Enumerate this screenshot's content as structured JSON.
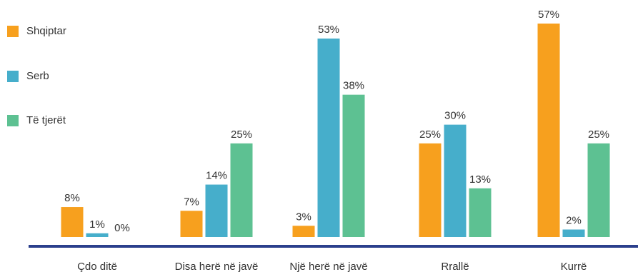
{
  "chart_data": {
    "type": "bar",
    "categories": [
      "Çdo ditë",
      "Disa herë në javë",
      "Një herë në javë",
      "Rrallë",
      "Kurrë"
    ],
    "series": [
      {
        "name": "Shqiptar",
        "color": "#F7A01E",
        "values": [
          8,
          7,
          3,
          25,
          57
        ],
        "labels": [
          "8%",
          "7%",
          "3%",
          "25%",
          "57%"
        ]
      },
      {
        "name": "Serb",
        "color": "#46AECB",
        "values": [
          1,
          14,
          53,
          30,
          2
        ],
        "labels": [
          "1%",
          "14%",
          "53%",
          "30%",
          "2%"
        ]
      },
      {
        "name": "Të tjerët",
        "color": "#5DC192",
        "values": [
          0,
          25,
          38,
          13,
          25
        ],
        "labels": [
          "0%",
          "25%",
          "38%",
          "13%",
          "25%"
        ]
      }
    ],
    "ylim": [
      0,
      57
    ],
    "legend_position": "left",
    "grid": false,
    "axis_color": "#2B3F8C"
  }
}
